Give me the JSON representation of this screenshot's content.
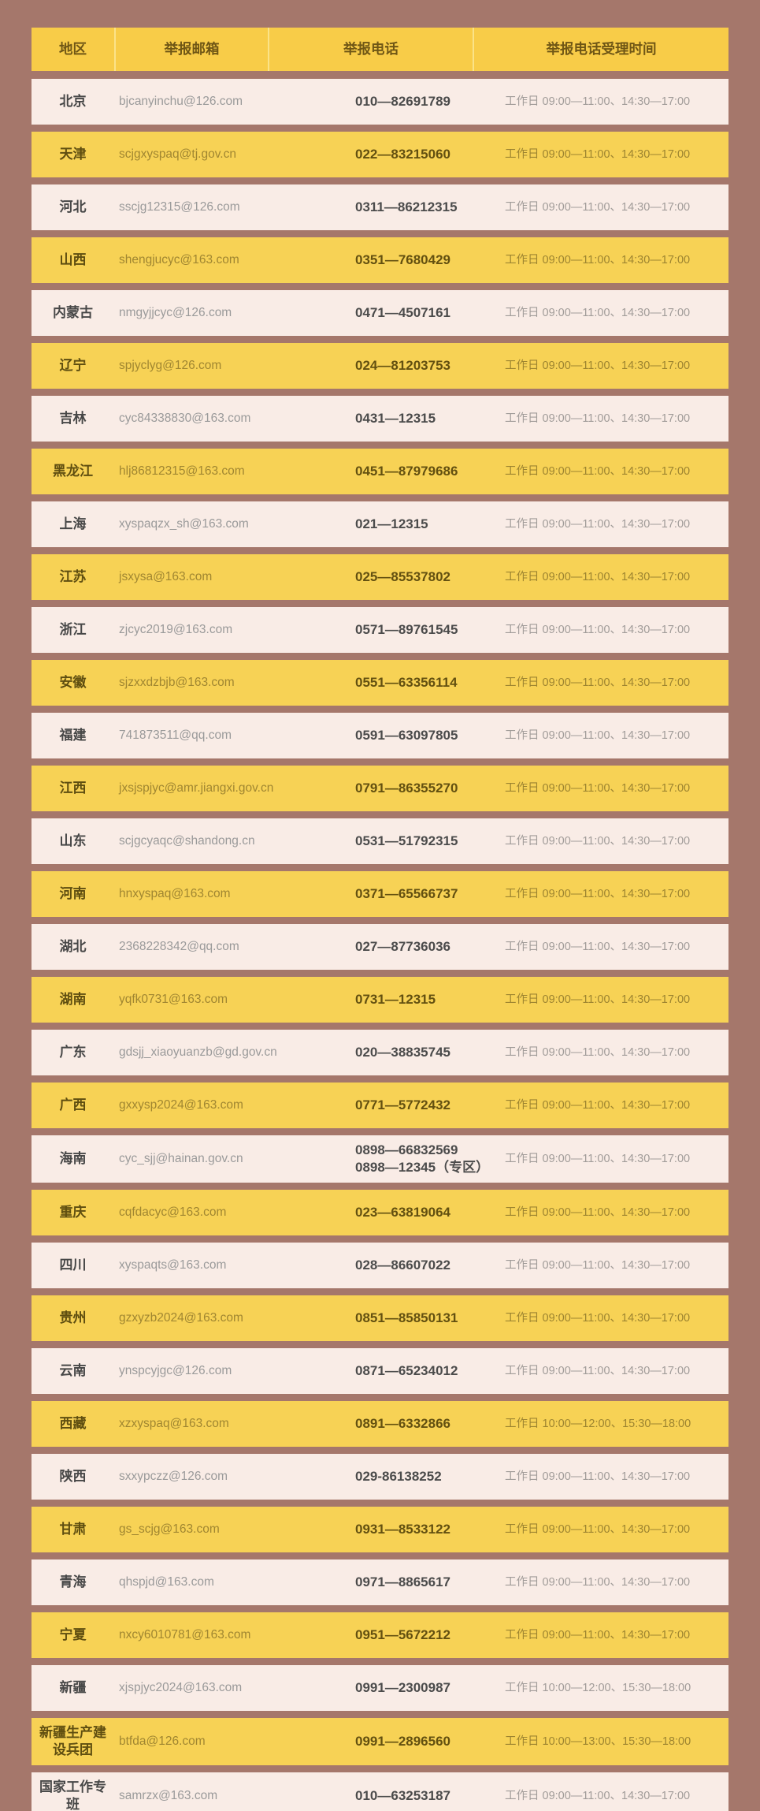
{
  "table": {
    "columns": [
      {
        "key": "region",
        "label": "地区"
      },
      {
        "key": "email",
        "label": "举报邮箱"
      },
      {
        "key": "phone",
        "label": "举报电话"
      },
      {
        "key": "time",
        "label": "举报电话受理时间"
      }
    ],
    "rows": [
      {
        "region": "北京",
        "email": "bjcanyinchu@126.com",
        "phone": "010—82691789",
        "time": "工作日 09:00—11:00、14:30—17:00"
      },
      {
        "region": "天津",
        "email": "scjgxyspaq@tj.gov.cn",
        "phone": "022—83215060",
        "time": "工作日 09:00—11:00、14:30—17:00"
      },
      {
        "region": "河北",
        "email": "sscjg12315@126.com",
        "phone": "0311—86212315",
        "time": "工作日 09:00—11:00、14:30—17:00"
      },
      {
        "region": "山西",
        "email": "shengjucyc@163.com",
        "phone": "0351—7680429",
        "time": "工作日 09:00—11:00、14:30—17:00"
      },
      {
        "region": "内蒙古",
        "email": "nmgyjjcyc@126.com",
        "phone": "0471—4507161",
        "time": "工作日 09:00—11:00、14:30—17:00"
      },
      {
        "region": "辽宁",
        "email": "spjyclyg@126.com",
        "phone": "024—81203753",
        "time": "工作日 09:00—11:00、14:30—17:00"
      },
      {
        "region": "吉林",
        "email": "cyc84338830@163.com",
        "phone": "0431—12315",
        "time": "工作日 09:00—11:00、14:30—17:00"
      },
      {
        "region": "黑龙江",
        "email": "hlj86812315@163.com",
        "phone": "0451—87979686",
        "time": "工作日 09:00—11:00、14:30—17:00"
      },
      {
        "region": "上海",
        "email": "xyspaqzx_sh@163.com",
        "phone": "021—12315",
        "time": "工作日 09:00—11:00、14:30—17:00"
      },
      {
        "region": "江苏",
        "email": "jsxysa@163.com",
        "phone": "025—85537802",
        "time": "工作日 09:00—11:00、14:30—17:00"
      },
      {
        "region": "浙江",
        "email": "zjcyc2019@163.com",
        "phone": "0571—89761545",
        "time": "工作日 09:00—11:00、14:30—17:00"
      },
      {
        "region": "安徽",
        "email": "sjzxxdzbjb@163.com",
        "phone": "0551—63356114",
        "time": "工作日 09:00—11:00、14:30—17:00"
      },
      {
        "region": "福建",
        "email": "741873511@qq.com",
        "phone": "0591—63097805",
        "time": "工作日 09:00—11:00、14:30—17:00"
      },
      {
        "region": "江西",
        "email": "jxsjspjyc@amr.jiangxi.gov.cn",
        "phone": "0791—86355270",
        "time": "工作日 09:00—11:00、14:30—17:00"
      },
      {
        "region": "山东",
        "email": "scjgcyaqc@shandong.cn",
        "phone": "0531—51792315",
        "time": "工作日 09:00—11:00、14:30—17:00"
      },
      {
        "region": "河南",
        "email": "hnxyspaq@163.com",
        "phone": "0371—65566737",
        "time": "工作日 09:00—11:00、14:30—17:00"
      },
      {
        "region": "湖北",
        "email": "2368228342@qq.com",
        "phone": "027—87736036",
        "time": "工作日 09:00—11:00、14:30—17:00"
      },
      {
        "region": "湖南",
        "email": "yqfk0731@163.com",
        "phone": "0731—12315",
        "time": "工作日 09:00—11:00、14:30—17:00"
      },
      {
        "region": "广东",
        "email": "gdsjj_xiaoyuanzb@gd.gov.cn",
        "phone": "020—38835745",
        "time": "工作日 09:00—11:00、14:30—17:00"
      },
      {
        "region": "广西",
        "email": "gxxysp2024@163.com",
        "phone": "0771—5772432",
        "time": "工作日 09:00—11:00、14:30—17:00"
      },
      {
        "region": "海南",
        "email": "cyc_sjj@hainan.gov.cn",
        "phone": "0898—66832569\n0898—12345（专区）",
        "time": "工作日 09:00—11:00、14:30—17:00"
      },
      {
        "region": "重庆",
        "email": "cqfdacyc@163.com",
        "phone": "023—63819064",
        "time": "工作日 09:00—11:00、14:30—17:00"
      },
      {
        "region": "四川",
        "email": "xyspaqts@163.com",
        "phone": "028—86607022",
        "time": "工作日 09:00—11:00、14:30—17:00"
      },
      {
        "region": "贵州",
        "email": "gzxyzb2024@163.com",
        "phone": "0851—85850131",
        "time": "工作日 09:00—11:00、14:30—17:00"
      },
      {
        "region": "云南",
        "email": "ynspcyjgc@126.com",
        "phone": "0871—65234012",
        "time": "工作日 09:00—11:00、14:30—17:00"
      },
      {
        "region": "西藏",
        "email": "xzxyspaq@163.com",
        "phone": "0891—6332866",
        "time": "工作日 10:00—12:00、15:30—18:00"
      },
      {
        "region": "陕西",
        "email": "sxxypczz@126.com",
        "phone": "029-86138252",
        "time": "工作日 09:00—11:00、14:30—17:00"
      },
      {
        "region": "甘肃",
        "email": "gs_scjg@163.com",
        "phone": "0931—8533122",
        "time": "工作日 09:00—11:00、14:30—17:00"
      },
      {
        "region": "青海",
        "email": "qhspjd@163.com",
        "phone": "0971—8865617",
        "time": "工作日 09:00—11:00、14:30—17:00"
      },
      {
        "region": "宁夏",
        "email": "nxcy6010781@163.com",
        "phone": "0951—5672212",
        "time": "工作日 09:00—11:00、14:30—17:00"
      },
      {
        "region": "新疆",
        "email": "xjspjyc2024@163.com",
        "phone": "0991—2300987",
        "time": "工作日 10:00—12:00、15:30—18:00"
      },
      {
        "region": "新疆生产建设兵团",
        "email": "btfda@126.com",
        "phone": "0991—2896560",
        "time": "工作日 10:00—13:00、15:30—18:00"
      },
      {
        "region": "国家工作专班",
        "email": "samrzx@163.com",
        "phone": "010—63253187",
        "time": "工作日 09:00—11:00、14:30—17:00"
      }
    ]
  },
  "colors": {
    "page_background": "#a5776b",
    "header_background": "#f8cc48",
    "gold_row_background": "#f7d255",
    "cream_row_background": "#f9ece6",
    "header_text": "#6f5615"
  }
}
